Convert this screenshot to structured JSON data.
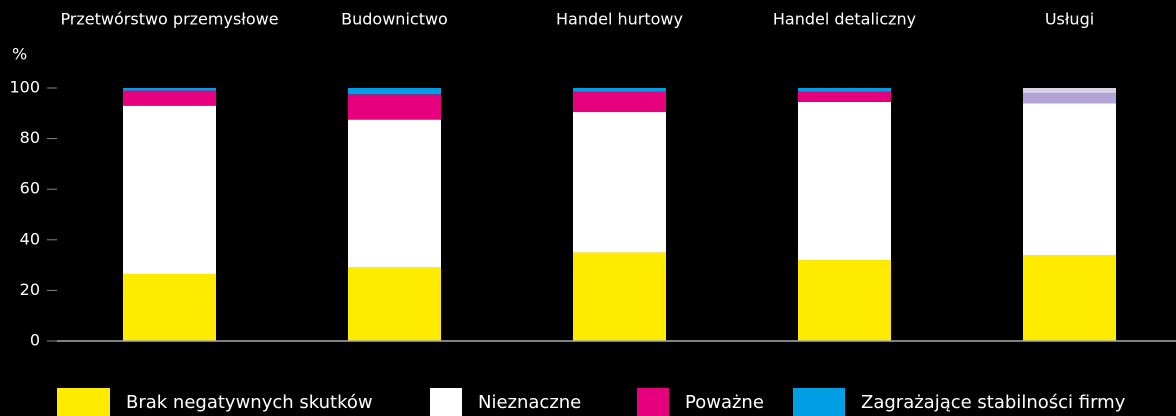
{
  "chart_data": {
    "type": "stacked_bar",
    "y_label": "%",
    "categories": [
      "Przetwórstwo przemysłowe",
      "Budownictwo",
      "Handel hurtowy",
      "Handel detaliczny",
      "Usługi"
    ],
    "series": [
      {
        "name": "Brak negatywnych skutków",
        "color": "#ffeb00",
        "values": [
          26.5,
          29,
          35,
          32,
          34
        ]
      },
      {
        "name": "Nieznaczne",
        "color": "#ffffff",
        "values": [
          66.5,
          58.5,
          55.5,
          62.5,
          60
        ]
      },
      {
        "name": "Poważne",
        "color": "#e6007e",
        "colors": [
          "#e6007e",
          "#e6007e",
          "#e6007e",
          "#e6007e",
          "#b3a3d6"
        ],
        "values": [
          6,
          10,
          8,
          4,
          4
        ]
      },
      {
        "name": "Zagrażające stabilności firmy",
        "color": "#009fe3",
        "colors": [
          "#009fe3",
          "#009fe3",
          "#009fe3",
          "#009fe3",
          "#d8cfe8"
        ],
        "values": [
          1,
          2.5,
          1.5,
          1.5,
          2
        ]
      }
    ],
    "ylim": [
      0,
      100
    ],
    "yticks": [
      0,
      20,
      40,
      60,
      80,
      100
    ],
    "grid": false,
    "legend": "bottom"
  }
}
